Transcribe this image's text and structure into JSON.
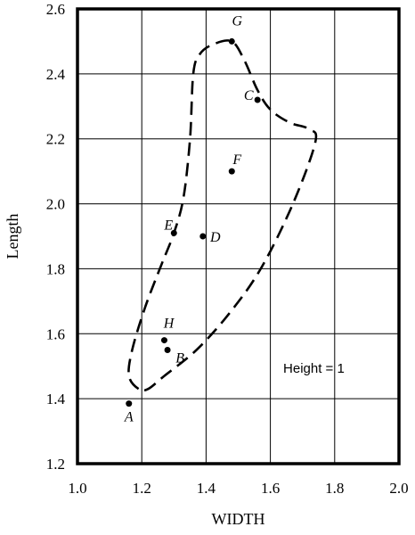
{
  "chart_data": {
    "type": "scatter",
    "title": "",
    "xlabel": "WIDTH",
    "ylabel": "Length",
    "xlim": [
      1.0,
      2.0
    ],
    "ylim": [
      1.2,
      2.6
    ],
    "grid": true,
    "x_ticks": [
      1.0,
      1.2,
      1.4,
      1.6,
      1.8,
      2.0
    ],
    "y_ticks": [
      1.2,
      1.4,
      1.6,
      1.8,
      2.0,
      2.2,
      2.4,
      2.6
    ],
    "x_tick_labels": [
      "1.0",
      "1.2",
      "1.4",
      "1.6",
      "1.8",
      "2.0"
    ],
    "y_tick_labels": [
      "1.2",
      "1.4",
      "1.6",
      "1.8",
      "2.0",
      "2.2",
      "2.4",
      "2.6"
    ],
    "points": [
      {
        "label": "A",
        "x": 1.16,
        "y": 1.385
      },
      {
        "label": "B",
        "x": 1.28,
        "y": 1.55
      },
      {
        "label": "H",
        "x": 1.27,
        "y": 1.58
      },
      {
        "label": "E",
        "x": 1.3,
        "y": 1.91
      },
      {
        "label": "D",
        "x": 1.39,
        "y": 1.9
      },
      {
        "label": "F",
        "x": 1.48,
        "y": 2.1
      },
      {
        "label": "C",
        "x": 1.56,
        "y": 2.32
      },
      {
        "label": "G",
        "x": 1.48,
        "y": 2.5
      }
    ],
    "boundary": [
      [
        1.19,
        1.43
      ],
      [
        1.16,
        1.47
      ],
      [
        1.17,
        1.55
      ],
      [
        1.21,
        1.68
      ],
      [
        1.26,
        1.81
      ],
      [
        1.3,
        1.91
      ],
      [
        1.33,
        2.02
      ],
      [
        1.35,
        2.2
      ],
      [
        1.36,
        2.4
      ],
      [
        1.38,
        2.46
      ],
      [
        1.42,
        2.49
      ],
      [
        1.48,
        2.5
      ],
      [
        1.52,
        2.44
      ],
      [
        1.56,
        2.35
      ],
      [
        1.6,
        2.29
      ],
      [
        1.66,
        2.25
      ],
      [
        1.72,
        2.23
      ],
      [
        1.74,
        2.19
      ],
      [
        1.67,
        2.0
      ],
      [
        1.57,
        1.8
      ],
      [
        1.47,
        1.66
      ],
      [
        1.37,
        1.55
      ],
      [
        1.27,
        1.47
      ],
      [
        1.22,
        1.43
      ],
      [
        1.19,
        1.43
      ]
    ],
    "annotation": "Height = 1"
  }
}
